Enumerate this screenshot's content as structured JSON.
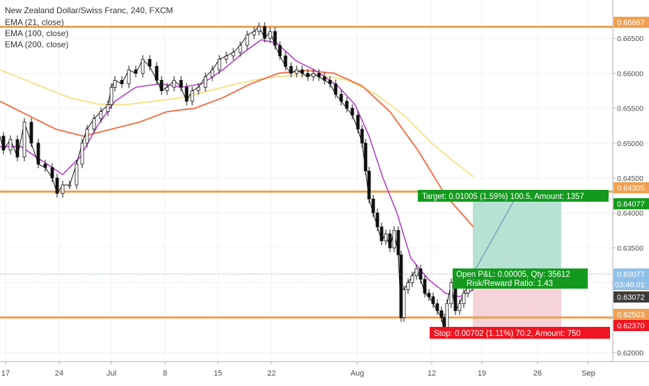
{
  "legend": {
    "title": "New Zealand Dollar/Swiss Franc, 240, FXCM",
    "ema21": "EMA (21, close)",
    "ema100": "EMA (100, close)",
    "ema200": "EMA (200, close)"
  },
  "colors": {
    "up": "#0b0b0b",
    "down": "#0b0b0b",
    "ema21": "#b23ec8",
    "ema100": "#f0744a",
    "ema200": "#f6e28a",
    "level": "#f0a050",
    "target_zone": "#9fd8c4",
    "stop_zone": "#f2c4cc",
    "green_box": "#139a1e",
    "red_box": "#f01420",
    "price_axis_bg": "#ffffff",
    "current_price_bg": "#8fc0e8",
    "dark_tag": "#3c3c3c"
  },
  "chart_data": {
    "type": "line",
    "instrument": "New Zealand Dollar/Swiss Franc, 240, FXCM",
    "x_labels": [
      "17",
      "24",
      "Jul",
      "8",
      "15",
      "22",
      "Aug",
      "12",
      "19",
      "26",
      "Sep"
    ],
    "y_ticks": [
      "0.66500",
      "0.66000",
      "0.65500",
      "0.65000",
      "0.64500",
      "0.64000",
      "0.63500",
      "0.63000",
      "0.62500",
      "0.62000"
    ],
    "y_range": [
      0.6187,
      0.6705
    ],
    "horizontal_levels": [
      {
        "label": "0.66667",
        "value": 0.66667
      },
      {
        "label": "0.64305",
        "value": 0.64305
      },
      {
        "label": "0.62503",
        "value": 0.62503
      }
    ],
    "price_tags": {
      "target": "0.64077",
      "current": "0.63077",
      "countdown": "03:46:01",
      "last": "0.63072",
      "stop": "0.62370"
    },
    "position": {
      "target_label": "Target: 0.01005 (1.59%) 100.5, Amount: 1357",
      "open_pnl_label": "Open P&L: 0.00005, Qty: 35612",
      "rr_label": "Risk/Reward Ratio: 1.43",
      "stop_label": "Stop: 0.00702 (1.11%) 70.2, Amount: 750",
      "target_price": 0.64077,
      "entry_price": 0.63077,
      "stop_price": 0.6237
    },
    "price_series": [
      [
        0,
        0.651
      ],
      [
        5,
        0.649
      ],
      [
        15,
        0.6505
      ],
      [
        25,
        0.648
      ],
      [
        35,
        0.653
      ],
      [
        45,
        0.65
      ],
      [
        55,
        0.647
      ],
      [
        65,
        0.6465
      ],
      [
        75,
        0.645
      ],
      [
        82,
        0.6428
      ],
      [
        90,
        0.644
      ],
      [
        100,
        0.644
      ],
      [
        110,
        0.647
      ],
      [
        118,
        0.65
      ],
      [
        125,
        0.652
      ],
      [
        135,
        0.6535
      ],
      [
        145,
        0.6545
      ],
      [
        155,
        0.6555
      ],
      [
        160,
        0.658
      ],
      [
        165,
        0.659
      ],
      [
        175,
        0.6585
      ],
      [
        185,
        0.6605
      ],
      [
        195,
        0.66
      ],
      [
        205,
        0.662
      ],
      [
        215,
        0.661
      ],
      [
        225,
        0.659
      ],
      [
        232,
        0.6575
      ],
      [
        240,
        0.658
      ],
      [
        250,
        0.659
      ],
      [
        260,
        0.658
      ],
      [
        268,
        0.656
      ],
      [
        276,
        0.6575
      ],
      [
        285,
        0.658
      ],
      [
        295,
        0.6595
      ],
      [
        305,
        0.6605
      ],
      [
        315,
        0.662
      ],
      [
        325,
        0.6625
      ],
      [
        335,
        0.663
      ],
      [
        345,
        0.664
      ],
      [
        355,
        0.6655
      ],
      [
        365,
        0.666
      ],
      [
        372,
        0.6667
      ],
      [
        380,
        0.665
      ],
      [
        388,
        0.666
      ],
      [
        395,
        0.664
      ],
      [
        402,
        0.6625
      ],
      [
        410,
        0.661
      ],
      [
        418,
        0.66
      ],
      [
        426,
        0.6605
      ],
      [
        434,
        0.66
      ],
      [
        442,
        0.6595
      ],
      [
        450,
        0.66
      ],
      [
        458,
        0.6595
      ],
      [
        466,
        0.659
      ],
      [
        474,
        0.6585
      ],
      [
        482,
        0.657
      ],
      [
        490,
        0.656
      ],
      [
        498,
        0.655
      ],
      [
        506,
        0.654
      ],
      [
        514,
        0.652
      ],
      [
        520,
        0.65
      ],
      [
        525,
        0.646
      ],
      [
        530,
        0.642
      ],
      [
        536,
        0.64
      ],
      [
        542,
        0.638
      ],
      [
        548,
        0.636
      ],
      [
        554,
        0.637
      ],
      [
        560,
        0.635
      ],
      [
        566,
        0.6375
      ],
      [
        572,
        0.634
      ],
      [
        576,
        0.625
      ],
      [
        580,
        0.629
      ],
      [
        586,
        0.63
      ],
      [
        592,
        0.631
      ],
      [
        598,
        0.632
      ],
      [
        604,
        0.6305
      ],
      [
        610,
        0.6285
      ],
      [
        616,
        0.628
      ],
      [
        622,
        0.627
      ],
      [
        628,
        0.626
      ],
      [
        634,
        0.625
      ],
      [
        638,
        0.623
      ],
      [
        642,
        0.627
      ],
      [
        648,
        0.63
      ],
      [
        654,
        0.626
      ],
      [
        660,
        0.627
      ],
      [
        666,
        0.6285
      ],
      [
        672,
        0.6295
      ],
      [
        678,
        0.6307
      ]
    ],
    "ema21_series": [
      [
        0,
        0.6495
      ],
      [
        30,
        0.6495
      ],
      [
        60,
        0.6475
      ],
      [
        90,
        0.6455
      ],
      [
        115,
        0.648
      ],
      [
        140,
        0.6525
      ],
      [
        165,
        0.656
      ],
      [
        195,
        0.658
      ],
      [
        230,
        0.6585
      ],
      [
        260,
        0.658
      ],
      [
        290,
        0.6585
      ],
      [
        320,
        0.6605
      ],
      [
        350,
        0.663
      ],
      [
        375,
        0.6648
      ],
      [
        398,
        0.6643
      ],
      [
        425,
        0.6618
      ],
      [
        455,
        0.6603
      ],
      [
        485,
        0.6582
      ],
      [
        510,
        0.6555
      ],
      [
        530,
        0.651
      ],
      [
        550,
        0.645
      ],
      [
        570,
        0.64
      ],
      [
        590,
        0.6335
      ],
      [
        615,
        0.6305
      ],
      [
        640,
        0.6285
      ],
      [
        660,
        0.628
      ],
      [
        680,
        0.629
      ]
    ],
    "ema100_series": [
      [
        0,
        0.656
      ],
      [
        40,
        0.654
      ],
      [
        80,
        0.652
      ],
      [
        120,
        0.651
      ],
      [
        160,
        0.652
      ],
      [
        200,
        0.653
      ],
      [
        240,
        0.6545
      ],
      [
        280,
        0.655
      ],
      [
        320,
        0.6565
      ],
      [
        360,
        0.6585
      ],
      [
        400,
        0.66
      ],
      [
        440,
        0.6604
      ],
      [
        480,
        0.66
      ],
      [
        520,
        0.6582
      ],
      [
        560,
        0.6545
      ],
      [
        600,
        0.649
      ],
      [
        640,
        0.6425
      ],
      [
        680,
        0.638
      ]
    ],
    "ema200_series": [
      [
        0,
        0.6605
      ],
      [
        50,
        0.6585
      ],
      [
        100,
        0.6565
      ],
      [
        140,
        0.6556
      ],
      [
        180,
        0.6555
      ],
      [
        220,
        0.656
      ],
      [
        260,
        0.6565
      ],
      [
        300,
        0.6575
      ],
      [
        340,
        0.6585
      ],
      [
        380,
        0.6593
      ],
      [
        420,
        0.6597
      ],
      [
        460,
        0.6597
      ],
      [
        500,
        0.659
      ],
      [
        540,
        0.657
      ],
      [
        580,
        0.654
      ],
      [
        620,
        0.65
      ],
      [
        650,
        0.6475
      ],
      [
        680,
        0.6452
      ]
    ]
  }
}
